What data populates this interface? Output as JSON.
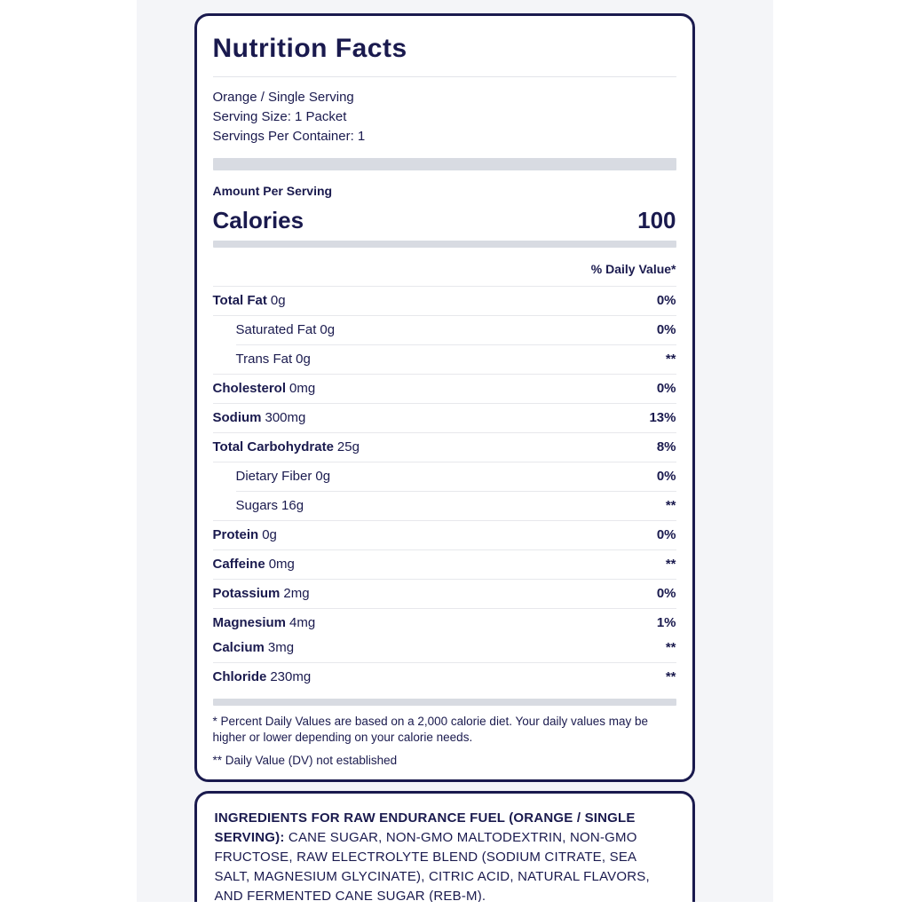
{
  "colors": {
    "text_navy": "#1a1a4e",
    "bar_gray": "#d8dbe2",
    "divider_gray": "#e7e8ec",
    "sheet_background": "#f4f5f8"
  },
  "label": {
    "title": "Nutrition Facts",
    "flavor": "Orange / Single Serving",
    "serving_size": "Serving Size: 1 Packet",
    "servings_per_container": "Servings Per Container: 1",
    "amount_per_serving": "Amount Per Serving",
    "calories_label": "Calories",
    "calories_value": "100",
    "daily_value_header": "% Daily Value*",
    "rows": [
      {
        "name": "Total Fat",
        "amount": "0g",
        "dv": "0%"
      },
      {
        "name": "Saturated Fat",
        "amount": "0g",
        "dv": "0%"
      },
      {
        "name": "Trans Fat",
        "amount": "0g",
        "dv": "**"
      },
      {
        "name": "Cholesterol",
        "amount": "0mg",
        "dv": "0%"
      },
      {
        "name": "Sodium",
        "amount": "300mg",
        "dv": "13%"
      },
      {
        "name": "Total Carbohydrate",
        "amount": "25g",
        "dv": "8%"
      },
      {
        "name": "Dietary Fiber",
        "amount": "0g",
        "dv": "0%"
      },
      {
        "name": "Sugars",
        "amount": "16g",
        "dv": "**"
      },
      {
        "name": "Protein",
        "amount": "0g",
        "dv": "0%"
      },
      {
        "name": "Caffeine",
        "amount": "0mg",
        "dv": "**"
      },
      {
        "name": "Potassium",
        "amount": "2mg",
        "dv": "0%"
      },
      {
        "name": "Magnesium",
        "amount": "4mg",
        "dv": "1%"
      },
      {
        "name": "Calcium",
        "amount": "3mg",
        "dv": "**"
      },
      {
        "name": "Chloride",
        "amount": "230mg",
        "dv": "**"
      }
    ],
    "footnote_1": "* Percent Daily Values are based on a 2,000 calorie diet. Your daily values may be higher or lower depending on your calorie needs.",
    "footnote_2": "** Daily Value (DV) not established"
  },
  "ingredients": {
    "heading": "INGREDIENTS FOR RAW ENDURANCE FUEL (ORANGE / SINGLE SERVING):",
    "text": "CANE SUGAR, NON-GMO MALTODEXTRIN, NON-GMO FRUCTOSE, RAW ELECTROLYTE BLEND (SODIUM CITRATE, SEA SALT, MAGNESIUM GLYCINATE), CITRIC ACID, NATURAL FLAVORS, AND FERMENTED CANE SUGAR (REB-M)."
  }
}
